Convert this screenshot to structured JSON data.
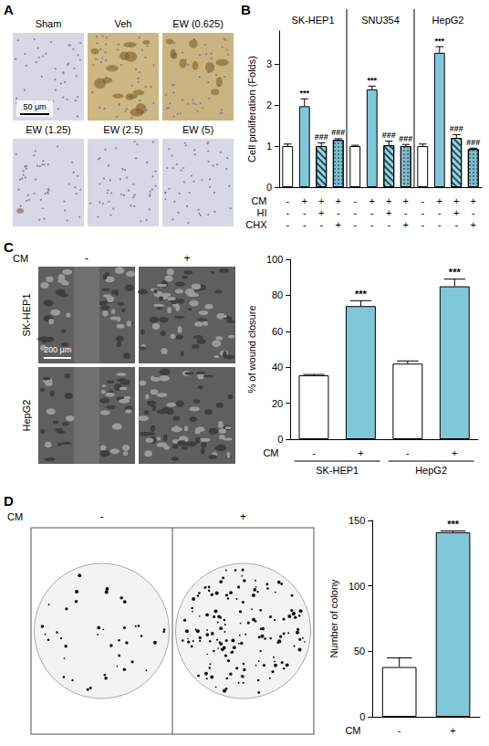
{
  "panel_labels": [
    "A",
    "B",
    "C",
    "D"
  ],
  "images": {
    "A": {
      "captions": [
        "Sham",
        "Veh",
        "EW (0.625)",
        "EW (1.25)",
        "EW (2.5)",
        "EW (5)"
      ],
      "scale_bar": "50 μm"
    },
    "C": {
      "condition": "CM",
      "columns": [
        "-",
        "+"
      ],
      "rows": [
        "SK-HEP1",
        "HepG2"
      ],
      "scale_bar": "200 μm"
    },
    "D": {
      "condition": "CM",
      "columns": [
        "-",
        "+"
      ]
    }
  },
  "chart_data": [
    {
      "type": "bar",
      "ylabel": "Cell proliferation (Folds)",
      "ylim": [
        0,
        3.8
      ],
      "yticks": [
        0,
        1,
        2,
        3
      ],
      "grid": false,
      "groups": [
        "SK-HEP1",
        "SNU354",
        "HepG2"
      ],
      "values": [
        1.0,
        1.97,
        1.0,
        1.15,
        1.0,
        2.38,
        1.02,
        1.0,
        1.0,
        3.27,
        1.2,
        0.93
      ],
      "errors": [
        0.05,
        0.18,
        0.08,
        0.03,
        0.02,
        0.08,
        0.1,
        0.04,
        0.05,
        0.15,
        0.08,
        0.02
      ],
      "annotations": [
        null,
        "***",
        "###",
        "###",
        null,
        "***",
        "###",
        "###",
        null,
        "***",
        "###",
        "###"
      ],
      "colors": [
        "#ffffff",
        "#80c7da",
        "#9bd3e0",
        "#7dbccc",
        "#ffffff",
        "#80c7da",
        "#9bd3e0",
        "#7dbccc",
        "#ffffff",
        "#80c7da",
        "#9bd3e0",
        "#7dbccc"
      ],
      "markers": [
        "none",
        "none",
        "hatch",
        "dots",
        "none",
        "none",
        "hatch",
        "dots",
        "none",
        "none",
        "hatch",
        "dots"
      ],
      "conditions": [
        {
          "label": "CM",
          "values": [
            "-",
            "+",
            "+",
            "+",
            "-",
            "+",
            "+",
            "+",
            "-",
            "+",
            "+",
            "+"
          ]
        },
        {
          "label": "HI",
          "values": [
            "-",
            "-",
            "+",
            "-",
            "-",
            "-",
            "+",
            "-",
            "-",
            "-",
            "+",
            "-"
          ]
        },
        {
          "label": "CHX",
          "values": [
            "-",
            "-",
            "-",
            "+",
            "-",
            "-",
            "-",
            "+",
            "-",
            "-",
            "-",
            "+"
          ]
        }
      ]
    },
    {
      "type": "bar",
      "ylabel": "% of wound closure",
      "ylim": [
        0,
        100
      ],
      "yticks": [
        0,
        20,
        40,
        60,
        80,
        100
      ],
      "grid": false,
      "groups": [
        "SK-HEP1",
        "HepG2"
      ],
      "values": [
        35.5,
        74,
        42,
        85
      ],
      "errors": [
        0.5,
        3,
        1.5,
        4
      ],
      "annotations": [
        null,
        "***",
        null,
        "***"
      ],
      "colors": [
        "#ffffff",
        "#80c7da",
        "#ffffff",
        "#80c7da"
      ],
      "conditions": [
        {
          "label": "CM",
          "values": [
            "-",
            "+",
            "-",
            "+"
          ]
        }
      ]
    },
    {
      "type": "bar",
      "ylabel": "Number of colony",
      "ylim": [
        0,
        150
      ],
      "yticks": [
        0,
        50,
        100,
        150
      ],
      "grid": false,
      "values": [
        38,
        141
      ],
      "errors": [
        7,
        1
      ],
      "annotations": [
        null,
        "***"
      ],
      "colors": [
        "#ffffff",
        "#80c7da"
      ],
      "conditions": [
        {
          "label": "CM",
          "values": [
            "-",
            "+"
          ]
        }
      ]
    }
  ]
}
